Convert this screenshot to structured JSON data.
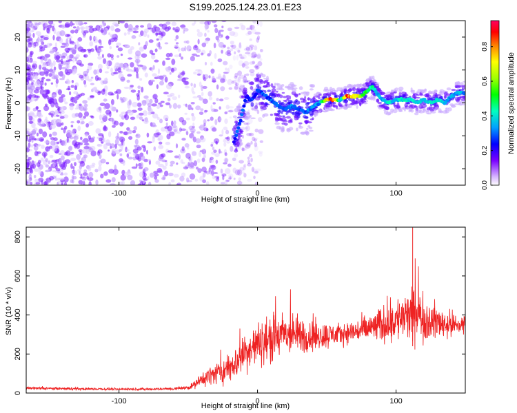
{
  "title": "S199.2025.124.23.01.E23",
  "chart_data": [
    {
      "type": "heatmap",
      "xlabel": "Height of straight line (km)",
      "ylabel": "Frequency (Hz)",
      "xlim": [
        -167,
        150
      ],
      "ylim": [
        -25,
        25
      ],
      "x_ticks": [
        "-100",
        "0",
        "100"
      ],
      "y_ticks": [
        "20",
        "10",
        "0",
        "-10",
        "-20"
      ],
      "colorbar": {
        "label": "Normalized spectral amplitude",
        "range": [
          0,
          0.95
        ],
        "ticks": [
          "0.0",
          "0.2",
          "0.4",
          "0.6",
          "0.8"
        ]
      },
      "ridge": {
        "x": [
          -17,
          -15,
          -12,
          -10,
          -8,
          -5,
          -2,
          0,
          3,
          6,
          10,
          15,
          20,
          25,
          30,
          35,
          40,
          45,
          50,
          55,
          60,
          65,
          70,
          75,
          80,
          83,
          86,
          90,
          95,
          100,
          105,
          110,
          115,
          120,
          125,
          130,
          135,
          140,
          145,
          150
        ],
        "y": [
          -12,
          -9,
          -5,
          -1,
          2,
          1,
          2,
          4,
          3,
          2,
          1,
          -1,
          -2,
          -1,
          -2,
          -3,
          -1,
          0,
          1,
          1,
          1,
          2,
          2,
          2,
          4,
          5,
          3,
          1,
          0,
          1,
          1,
          1,
          0,
          1,
          0,
          1,
          0,
          2,
          3,
          3
        ],
        "amplitude": [
          0.25,
          0.3,
          0.3,
          0.3,
          0.2,
          0.3,
          0.25,
          0.3,
          0.3,
          0.3,
          0.3,
          0.3,
          0.35,
          0.35,
          0.3,
          0.3,
          0.35,
          0.35,
          0.85,
          0.9,
          0.4,
          0.9,
          0.85,
          0.6,
          0.5,
          0.45,
          0.4,
          0.35,
          0.45,
          0.4,
          0.45,
          0.4,
          0.45,
          0.4,
          0.45,
          0.45,
          0.4,
          0.35,
          0.4,
          0.35
        ]
      }
    },
    {
      "type": "line",
      "xlabel": "Height of straight line (km)",
      "ylabel": "SNR (10 * v/v)",
      "xlim": [
        -167,
        150
      ],
      "ylim": [
        0,
        850
      ],
      "x_ticks": [
        "-100",
        "0",
        "100"
      ],
      "y_ticks": [
        "0",
        "200",
        "400",
        "600",
        "800"
      ],
      "color": "#ee2222",
      "series": [
        {
          "x": [
            -167,
            -140,
            -100,
            -80,
            -60,
            -50,
            -45,
            -40,
            -35,
            -30,
            -25,
            -20,
            -15,
            -10,
            -5,
            0,
            5,
            10,
            15,
            20,
            25,
            30,
            35,
            40,
            45,
            50,
            55,
            60,
            65,
            70,
            75,
            80,
            85,
            90,
            95,
            100,
            105,
            110,
            115,
            120,
            125,
            130,
            135,
            140,
            145,
            150
          ],
          "y": [
            25,
            22,
            20,
            20,
            22,
            28,
            45,
            70,
            90,
            100,
            110,
            130,
            160,
            200,
            230,
            250,
            265,
            280,
            290,
            300,
            300,
            300,
            290,
            290,
            295,
            295,
            300,
            300,
            310,
            315,
            320,
            330,
            340,
            350,
            360,
            375,
            385,
            390,
            400,
            385,
            370,
            365,
            355,
            350,
            345,
            355
          ],
          "spread": [
            10,
            10,
            8,
            8,
            10,
            15,
            30,
            50,
            70,
            80,
            90,
            110,
            120,
            140,
            150,
            160,
            170,
            180,
            175,
            170,
            150,
            140,
            130,
            120,
            110,
            100,
            90,
            80,
            80,
            90,
            100,
            110,
            120,
            140,
            150,
            170,
            180,
            200,
            190,
            170,
            150,
            130,
            110,
            100,
            90,
            80
          ]
        }
      ]
    }
  ]
}
